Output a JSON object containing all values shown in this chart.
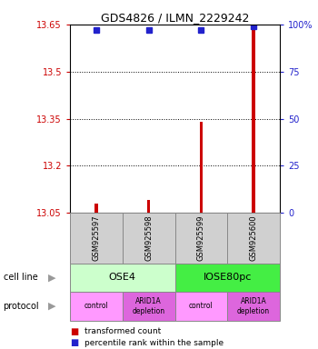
{
  "title": "GDS4826 / ILMN_2229242",
  "samples": [
    "GSM925597",
    "GSM925598",
    "GSM925599",
    "GSM925600"
  ],
  "transformed_counts": [
    13.08,
    13.09,
    13.34,
    13.65
  ],
  "percentile_ranks": [
    97,
    97,
    97,
    99
  ],
  "ylim": [
    13.05,
    13.65
  ],
  "yticks_left": [
    13.05,
    13.2,
    13.35,
    13.5,
    13.65
  ],
  "yticks_right": [
    0,
    25,
    50,
    75,
    100
  ],
  "yticks_right_labels": [
    "0",
    "25",
    "50",
    "75",
    "100%"
  ],
  "hlines": [
    13.2,
    13.35,
    13.5
  ],
  "bar_color": "#cc0000",
  "dot_color": "#2222cc",
  "cell_lines": [
    {
      "label": "OSE4",
      "cols": [
        0,
        1
      ],
      "color": "#ccffcc"
    },
    {
      "label": "IOSE80pc",
      "cols": [
        2,
        3
      ],
      "color": "#44ee44"
    }
  ],
  "protocols": [
    {
      "label": "control",
      "col": 0,
      "color": "#ff99ff"
    },
    {
      "label": "ARID1A\ndepletion",
      "col": 1,
      "color": "#dd66dd"
    },
    {
      "label": "control",
      "col": 2,
      "color": "#ff99ff"
    },
    {
      "label": "ARID1A\ndepletion",
      "col": 3,
      "color": "#dd66dd"
    }
  ],
  "legend_items": [
    {
      "color": "#cc0000",
      "label": "transformed count"
    },
    {
      "color": "#2222cc",
      "label": "percentile rank within the sample"
    }
  ],
  "left_label_color": "#cc0000",
  "right_label_color": "#2222cc",
  "annotation_left": "cell line",
  "annotation_left2": "protocol"
}
